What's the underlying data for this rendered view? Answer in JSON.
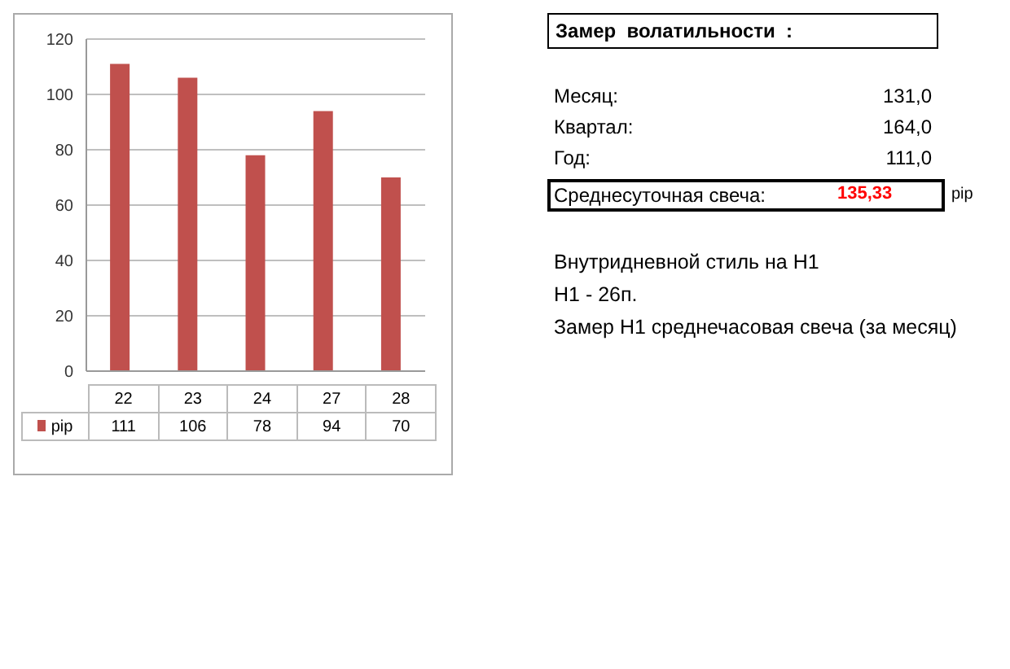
{
  "chart_data": {
    "type": "bar",
    "categories": [
      "22",
      "23",
      "24",
      "27",
      "28"
    ],
    "series": [
      {
        "name": "pip",
        "color": "#c0504d",
        "values": [
          111,
          106,
          78,
          94,
          70
        ]
      }
    ],
    "ylim": [
      0,
      120
    ],
    "yticks": [
      0,
      20,
      40,
      60,
      80,
      100,
      120
    ],
    "grid": "y",
    "legend": "bottom",
    "data_labels": true,
    "annotations": [
      "Замер  волатильности  :",
      "Месяц:",
      "131,0",
      "Квартал:",
      "164,0",
      "Год:",
      "111,0",
      "Среднесуточная свеча:",
      "135,33",
      "pip",
      "Внутридневной стиль на H1",
      "H1 - 26п.",
      "Замер H1 среднечасовая свеча (за месяц)"
    ]
  }
}
